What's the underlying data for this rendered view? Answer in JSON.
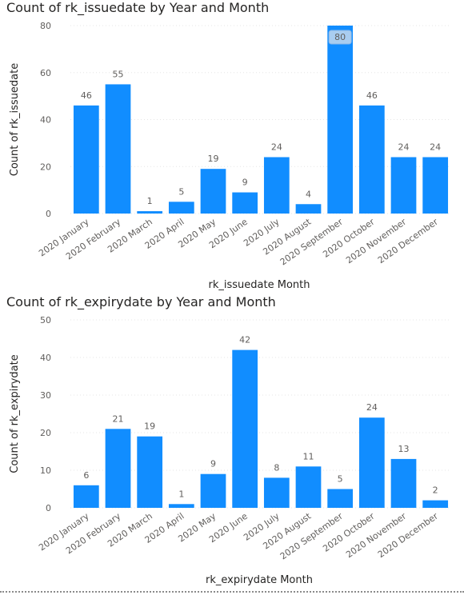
{
  "chart_data": [
    {
      "type": "bar",
      "title": "Count of rk_issuedate by Year and Month",
      "xlabel": "rk_issuedate Month",
      "ylabel": "Count of rk_issuedate",
      "categories": [
        "2020 January",
        "2020 February",
        "2020 March",
        "2020 April",
        "2020 May",
        "2020 June",
        "2020 July",
        "2020 August",
        "2020 September",
        "2020 October",
        "2020 November",
        "2020 December"
      ],
      "values": [
        46,
        55,
        1,
        5,
        19,
        9,
        24,
        4,
        80,
        46,
        24,
        24
      ],
      "ylim": [
        0,
        80
      ],
      "yticks": [
        0,
        20,
        40,
        60,
        80
      ],
      "grid": true,
      "legend": "none",
      "bar_color": "#118DFF",
      "highlighted_label_index": 8
    },
    {
      "type": "bar",
      "title": "Count of rk_expirydate by Year and Month",
      "xlabel": "rk_expirydate Month",
      "ylabel": "Count of rk_expirydate",
      "categories": [
        "2020 January",
        "2020 February",
        "2020 March",
        "2020 April",
        "2020 May",
        "2020 June",
        "2020 July",
        "2020 August",
        "2020 September",
        "2020 October",
        "2020 November",
        "2020 December"
      ],
      "values": [
        6,
        21,
        19,
        1,
        9,
        42,
        8,
        11,
        5,
        24,
        13,
        2
      ],
      "ylim": [
        0,
        50
      ],
      "yticks": [
        0,
        10,
        20,
        30,
        40,
        50
      ],
      "grid": true,
      "legend": "none",
      "bar_color": "#118DFF"
    }
  ]
}
